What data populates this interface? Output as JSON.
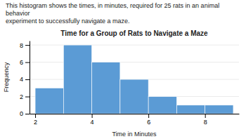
{
  "chart_data": {
    "type": "histogram",
    "title": "Time for a Group of Rats to Navigate a Maze",
    "subtitle": "This histogram shows the times, in minutes, required for 25 rats in an animal behavior\nexperiment to successfully navigate a maze.",
    "x_label": "Time in Minutes",
    "y_label": "Frequency",
    "bins": [
      2,
      3,
      4,
      5,
      6,
      7,
      8,
      9
    ],
    "values": [
      3,
      8,
      6,
      4,
      2,
      1,
      1
    ],
    "color": "#5b9bd5",
    "xlim": [
      1.8,
      9.2
    ],
    "ylim": [
      0,
      8.5
    ],
    "xticks": [
      2,
      4,
      6,
      8
    ],
    "yticks": [
      0,
      2,
      4,
      6,
      8
    ],
    "grid": true
  }
}
